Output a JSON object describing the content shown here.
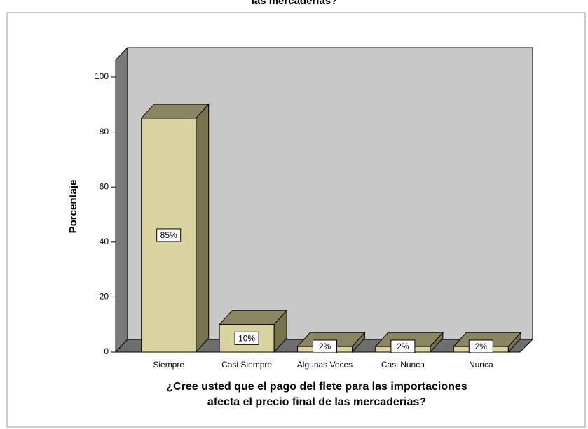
{
  "chart_data": {
    "type": "bar3d",
    "title": "las mercaderias?",
    "categories": [
      "Siempre",
      "Casi Siempre",
      "Algunas Veces",
      "Casi Nunca",
      "Nunca"
    ],
    "values": [
      85,
      10,
      2,
      2,
      2
    ],
    "value_labels": [
      "85%",
      "10%",
      "2%",
      "2%",
      "2%"
    ],
    "color": "#d8d3a0",
    "ylim": [
      0,
      100
    ],
    "yticks": [
      0,
      20,
      40,
      60,
      80,
      100
    ],
    "ylabel": "Porcentaje",
    "xlabel": [
      "¿Cree usted que el pago del flete para las importaciones",
      "afecta el precio final de las mercaderias?"
    ]
  }
}
